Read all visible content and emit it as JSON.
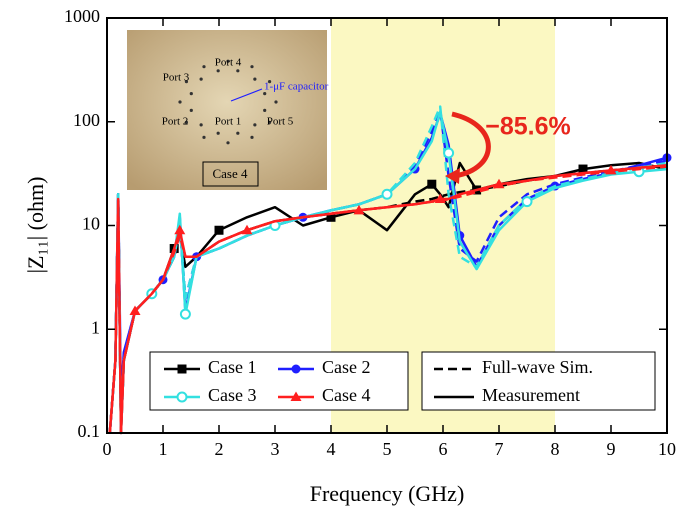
{
  "chart_data": {
    "type": "line",
    "xlabel": "Frequency (GHz)",
    "ylabel": "|Z₁₁| (ohm)",
    "log_y": true,
    "xlim": [
      0,
      10
    ],
    "ylim": [
      0.1,
      1000
    ],
    "xticks": [
      0,
      1,
      2,
      3,
      4,
      5,
      6,
      7,
      8,
      9,
      10
    ],
    "yticks": [
      0.1,
      1,
      10,
      100,
      1000
    ],
    "highlight_range": [
      4,
      8
    ],
    "highlight_color": "#fbf8c2",
    "x": [
      0.05,
      0.15,
      0.2,
      0.25,
      0.3,
      0.5,
      0.8,
      1.0,
      1.2,
      1.3,
      1.4,
      1.6,
      2,
      2.5,
      3,
      3.5,
      4,
      4.5,
      5,
      5.5,
      5.8,
      5.95,
      6.1,
      6.3,
      6.6,
      7,
      7.5,
      8,
      8.5,
      9,
      9.5,
      10
    ],
    "series": [
      {
        "name": "Case 1",
        "color": "#000000",
        "marker": "square",
        "values": [
          0.1,
          0.5,
          20,
          0.1,
          0.5,
          1.5,
          2.2,
          3,
          6,
          8,
          4,
          5,
          9,
          12,
          15,
          10,
          12,
          14,
          9,
          20,
          25,
          20,
          15,
          40,
          22,
          25,
          28,
          30,
          35,
          38,
          40,
          35
        ],
        "sim_values": [
          0.1,
          0.5,
          20,
          0.1,
          0.5,
          1.5,
          2.2,
          3,
          5,
          8,
          5,
          5,
          7,
          9,
          11,
          12,
          13,
          14,
          15,
          17,
          18,
          19,
          20,
          21,
          22,
          24,
          27,
          30,
          32,
          34,
          36,
          38
        ]
      },
      {
        "name": "Case 2",
        "color": "#1f1fff",
        "marker": "circle",
        "values": [
          0.1,
          0.5,
          20,
          0.2,
          0.6,
          1.5,
          2.2,
          3,
          5,
          12,
          1.5,
          5,
          6,
          8,
          10,
          12,
          14,
          16,
          20,
          35,
          70,
          120,
          60,
          8,
          4,
          10,
          18,
          24,
          28,
          32,
          38,
          45
        ],
        "sim_values": [
          0.1,
          0.5,
          20,
          0.1,
          0.5,
          1.5,
          2.2,
          3,
          5,
          10,
          2,
          5,
          6,
          8,
          10,
          12,
          14,
          16,
          20,
          38,
          80,
          130,
          30,
          6,
          4.5,
          12,
          20,
          25,
          29,
          33,
          38,
          42
        ]
      },
      {
        "name": "Case 3",
        "color": "#33e0e0",
        "marker": "open-circle",
        "values": [
          0.1,
          0.5,
          20,
          0.1,
          0.5,
          1.5,
          2.2,
          3,
          5,
          13,
          1.4,
          5,
          6,
          8,
          10,
          12,
          14,
          16,
          20,
          35,
          65,
          125,
          50,
          7,
          3.8,
          9,
          17,
          23,
          27,
          31,
          33,
          35
        ],
        "sim_values": [
          0.1,
          0.5,
          20,
          0.1,
          0.5,
          1.5,
          2.2,
          3,
          5,
          10,
          2,
          5,
          6,
          8,
          10,
          12,
          14,
          16,
          20,
          40,
          90,
          140,
          20,
          5,
          4,
          10,
          18,
          24,
          28,
          32,
          36,
          40
        ]
      },
      {
        "name": "Case 4",
        "color": "#ff1f1f",
        "marker": "triangle",
        "values": [
          0.1,
          0.5,
          18,
          0.1,
          0.5,
          1.5,
          2.2,
          3,
          6,
          9,
          5,
          5,
          7,
          9,
          11,
          12,
          13,
          14,
          15,
          16,
          17,
          18,
          18,
          20,
          22,
          25,
          27,
          30,
          32,
          34,
          36,
          38
        ],
        "sim_values": [
          0.1,
          0.5,
          18,
          0.1,
          0.5,
          1.5,
          2.2,
          3,
          5.5,
          8,
          5,
          5,
          7,
          9,
          11,
          12,
          13,
          14,
          15,
          16,
          17,
          17,
          18,
          19,
          21,
          24,
          27,
          29,
          31,
          33,
          35,
          37
        ]
      }
    ],
    "line_styles": {
      "simulation": "Full-wave Sim.",
      "measurement": "Measurement"
    },
    "annotation": "−85.6%",
    "inset": {
      "ports": [
        "Port 4",
        "Port 3",
        "Port 2",
        "Port 1",
        "Port 5"
      ],
      "capacitor": "1-μF capacitor",
      "case": "Case 4"
    }
  }
}
